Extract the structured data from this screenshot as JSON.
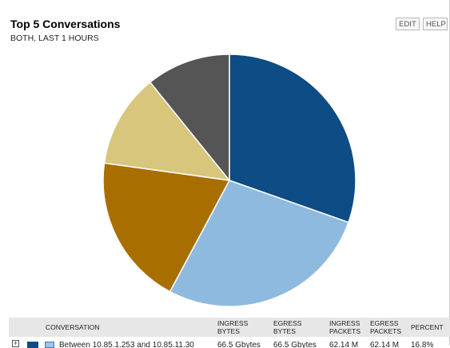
{
  "widget": {
    "title": "Top 5 Conversations",
    "subtitle": "BOTH, LAST 1 HOURS",
    "edit_label": "EDIT",
    "help_label": "HELP"
  },
  "chart_data": {
    "type": "pie",
    "slices": [
      {
        "value": 30.4,
        "color": "#0d4c84"
      },
      {
        "value": 27.4,
        "color": "#8fbadf"
      },
      {
        "value": 19.4,
        "color": "#a86f00"
      },
      {
        "value": 12.0,
        "color": "#d8c67c"
      },
      {
        "value": 10.8,
        "color": "#555555"
      }
    ]
  },
  "table": {
    "headers": {
      "conversation": "CONVERSATION",
      "ingress_bytes": [
        "INGRESS",
        "BYTES"
      ],
      "egress_bytes": [
        "EGRESS",
        "BYTES"
      ],
      "ingress_packets": [
        "INGRESS",
        "PACKETS"
      ],
      "egress_packets": [
        "EGRESS",
        "PACKETS"
      ],
      "percent": "PERCENT"
    },
    "rows": [
      {
        "expand": "+",
        "swatch_color": "#0d4c84",
        "conversation": "Between 10.85.1.253 and 10.85.11.30",
        "ingress_bytes": "66.5 Gbytes",
        "egress_bytes": "66.5 Gbytes",
        "ingress_packets": "62.14 M",
        "egress_packets": "62.14 M",
        "percent": "16.8%"
      }
    ]
  }
}
